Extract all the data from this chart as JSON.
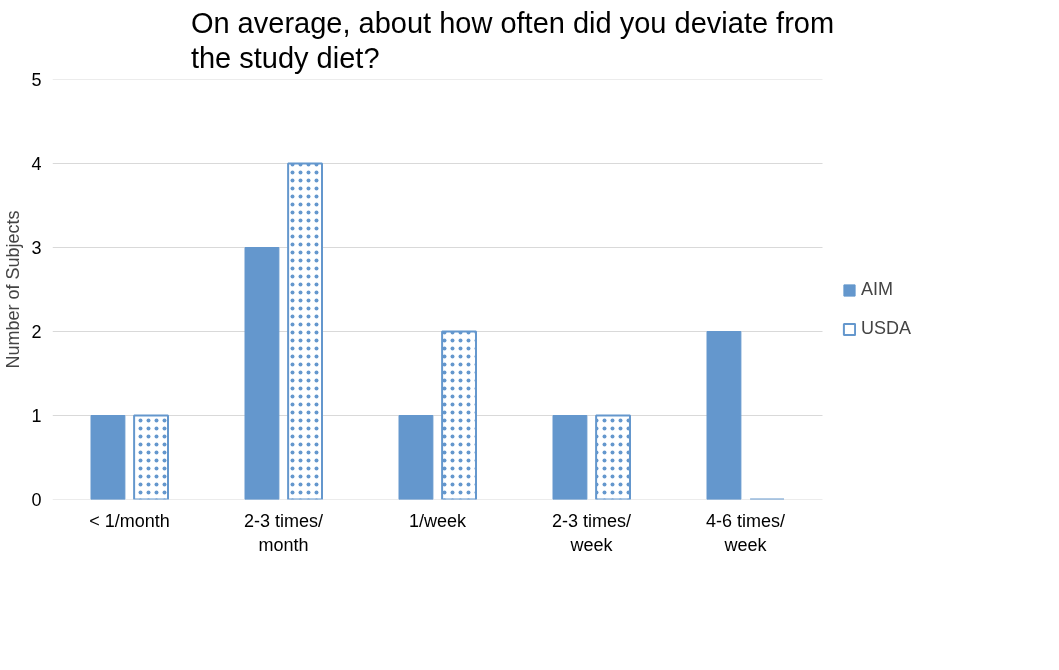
{
  "chart_data": {
    "type": "bar",
    "title": "On average, about how often did you deviate from the study diet?",
    "ylabel": "Number of Subjects",
    "categories": [
      "< 1/month",
      "2-3 times/\nmonth",
      "1/week",
      "2-3 times/\nweek",
      "4-6 times/\nweek"
    ],
    "series": [
      {
        "name": "AIM",
        "color": "#6497cd",
        "values": [
          1,
          3,
          1,
          1,
          2
        ]
      },
      {
        "name": "USDA",
        "color": "#6497cd",
        "values": [
          1,
          4,
          2,
          1,
          0
        ]
      }
    ],
    "ylim": [
      0,
      5
    ],
    "yticks": [
      0,
      1,
      2,
      3,
      4,
      5
    ],
    "grid": "y",
    "legend": "right"
  }
}
